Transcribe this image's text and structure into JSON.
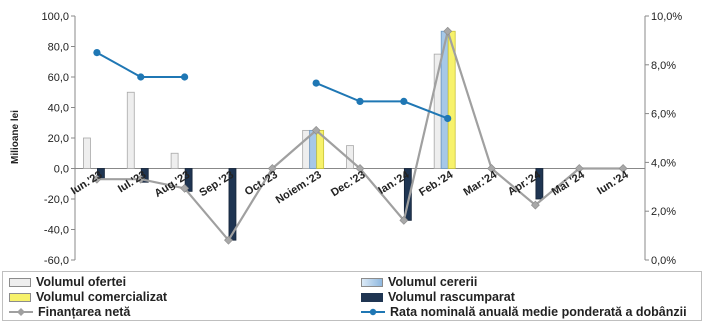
{
  "chart_data": {
    "type": "bar+line",
    "title": "",
    "ylabel": "Milioane lei",
    "ylim": [
      -60,
      100
    ],
    "y_ticks": [
      "100,0",
      "80,0",
      "60,0",
      "40,0",
      "20,0",
      "0,0",
      "-20,0",
      "-40,0",
      "-60,0"
    ],
    "y2lim": [
      0,
      10
    ],
    "y2_ticks": [
      "10,0%",
      "8,0%",
      "6,0%",
      "4,0%",
      "2,0%",
      "0,0%"
    ],
    "categories": [
      "Iun.'23",
      "Iul.'23",
      "Aug.'23",
      "Sep.'23",
      "Oct.'23",
      "Noiem.'23",
      "Dec.'23",
      "Ian.'24",
      "Feb.'24",
      "Mar.'24",
      "Apr.'24",
      "Mai '24",
      "Iun.'24"
    ],
    "series": [
      {
        "name": "Volumul ofertei",
        "kind": "bar",
        "values": [
          20,
          50,
          10,
          0,
          0,
          25,
          15,
          0,
          75,
          0,
          0,
          0,
          0
        ]
      },
      {
        "name": "Volumul cererii",
        "kind": "bar",
        "values": [
          0,
          0,
          0,
          0,
          0,
          25,
          0,
          0,
          90,
          0,
          0,
          0,
          0
        ]
      },
      {
        "name": "Volumul comercializat",
        "kind": "bar",
        "values": [
          0,
          0,
          0,
          0,
          0,
          25,
          0,
          0,
          90,
          0,
          0,
          0,
          0
        ]
      },
      {
        "name": "Volumul rascumparat",
        "kind": "bar",
        "values": [
          -7,
          -9,
          -15,
          -47,
          0,
          0,
          0,
          -34,
          0,
          0,
          -20,
          0,
          0
        ]
      },
      {
        "name": "Finanțarea netă",
        "kind": "line",
        "axis": "left",
        "values": [
          -7,
          -7,
          -13,
          -47,
          0,
          25,
          0,
          -34,
          90,
          0,
          -24,
          0,
          0
        ]
      },
      {
        "name": "Rata nominală anuală medie ponderată a dobânzii",
        "kind": "line",
        "axis": "right",
        "values": [
          8.5,
          7.5,
          7.5,
          null,
          null,
          7.25,
          6.5,
          6.5,
          5.8,
          null,
          null,
          null,
          null
        ]
      }
    ],
    "colors": {
      "oferta": "#eeeeee",
      "cererea": "#a6c8e8",
      "comercializat": "#f7f26b",
      "rascumparat": "#1f3552",
      "finantare": "#a0a0a0",
      "rata": "#1f77b4"
    },
    "grid": false,
    "legend_position": "bottom"
  }
}
